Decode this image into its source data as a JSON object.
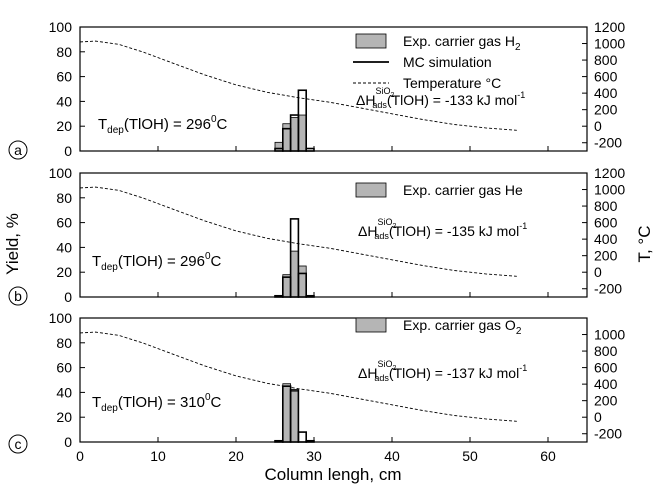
{
  "figure": {
    "y_left_label": "Yield, %",
    "y_right_label": "T, °C",
    "x_label": "Column lengh, cm"
  },
  "chart_data": [
    {
      "type": "bar",
      "panel_label": "a",
      "xlim": [
        0,
        65
      ],
      "ylim": [
        0,
        100
      ],
      "y2lim": [
        -300,
        1200
      ],
      "x_ticks": [
        0,
        10,
        20,
        30,
        40,
        50,
        60
      ],
      "y_ticks": [
        0,
        20,
        40,
        60,
        80,
        100
      ],
      "y2_ticks": [
        -200,
        0,
        200,
        400,
        600,
        800,
        1000,
        1200
      ],
      "bin_width": 1,
      "series": [
        {
          "name": "Exp. carrier gas H2",
          "kind": "bar-filled",
          "x": [
            25.5,
            26.5,
            27.5,
            28.5
          ],
          "values": [
            7,
            22,
            27,
            29
          ]
        },
        {
          "name": "MC simulation",
          "kind": "bar-outline",
          "x": [
            25.5,
            26.5,
            27.5,
            28.5,
            29.5
          ],
          "values": [
            2,
            18,
            29,
            49,
            2
          ]
        },
        {
          "name": "Temperature °C",
          "kind": "line-dashed",
          "axis": "right",
          "x": [
            0,
            2,
            5,
            8,
            12,
            16,
            20,
            24,
            28,
            32,
            36,
            40,
            44,
            48,
            52,
            56
          ],
          "values": [
            1020,
            1030,
            990,
            900,
            760,
            620,
            500,
            410,
            345,
            290,
            220,
            150,
            80,
            20,
            -20,
            -50
          ]
        }
      ],
      "legend": {
        "position": "top-right",
        "entries": [
          {
            "main": "Exp. carrier gas H",
            "sub": "2",
            "marker": "bar-filled"
          },
          {
            "main": "MC simulation",
            "sub": "",
            "marker": "line-solid"
          },
          {
            "main": "Temperature °C",
            "sub": "",
            "marker": "line-dashed"
          }
        ]
      },
      "annotations": {
        "tdep": {
          "t": "T",
          "sub": "dep",
          "mid": "(TlOH) = 296",
          "sup": "0",
          "end": "C"
        },
        "dh": {
          "d": "ΔH",
          "sup1": "SiO",
          "sup1sub": "2",
          "sub1": "ads",
          "mid": "(TlOH) = -133 kJ mol",
          "sup2": "-1"
        }
      }
    },
    {
      "type": "bar",
      "panel_label": "b",
      "xlim": [
        0,
        65
      ],
      "ylim": [
        0,
        100
      ],
      "y2lim": [
        -300,
        1200
      ],
      "x_ticks": [
        0,
        10,
        20,
        30,
        40,
        50,
        60
      ],
      "y_ticks": [
        0,
        20,
        40,
        60,
        80,
        100
      ],
      "y2_ticks": [
        -200,
        0,
        200,
        400,
        600,
        800,
        1000,
        1200
      ],
      "bin_width": 1,
      "series": [
        {
          "name": "Exp. carrier gas He",
          "kind": "bar-filled",
          "x": [
            26.5,
            27.5,
            28.5
          ],
          "values": [
            18,
            37,
            25
          ]
        },
        {
          "name": "MC simulation",
          "kind": "bar-outline",
          "x": [
            25.5,
            26.5,
            27.5,
            28.5,
            29.5
          ],
          "values": [
            1,
            16,
            63,
            19,
            1
          ]
        },
        {
          "name": "Temperature °C",
          "kind": "line-dashed",
          "axis": "right",
          "x": [
            0,
            2,
            5,
            8,
            12,
            16,
            20,
            24,
            28,
            32,
            36,
            40,
            44,
            48,
            52,
            56
          ],
          "values": [
            1020,
            1030,
            990,
            900,
            760,
            620,
            500,
            410,
            345,
            290,
            220,
            150,
            80,
            20,
            -20,
            -50
          ]
        }
      ],
      "legend": {
        "position": "top-right",
        "entries": [
          {
            "main": "Exp. carrier gas He",
            "sub": "",
            "marker": "bar-filled"
          }
        ]
      },
      "annotations": {
        "tdep": {
          "t": "T",
          "sub": "dep",
          "mid": "(TlOH) = 296",
          "sup": "0",
          "end": "C"
        },
        "dh": {
          "d": "ΔH",
          "sup1": "SiO",
          "sup1sub": "2",
          "sub1": "ads",
          "mid": "(TlOH) = -135 kJ mol",
          "sup2": "-1"
        }
      }
    },
    {
      "type": "bar",
      "panel_label": "c",
      "xlim": [
        0,
        65
      ],
      "ylim": [
        0,
        100
      ],
      "y2lim": [
        -300,
        1200
      ],
      "x_ticks": [
        0,
        10,
        20,
        30,
        40,
        50,
        60
      ],
      "y_ticks": [
        0,
        20,
        40,
        60,
        80,
        100
      ],
      "y2_ticks": [
        -200,
        0,
        200,
        400,
        600,
        800,
        1000
      ],
      "bin_width": 1,
      "series": [
        {
          "name": "Exp. carrier gas O2",
          "kind": "bar-filled",
          "x": [
            26.5,
            27.5
          ],
          "values": [
            47,
            41
          ]
        },
        {
          "name": "MC simulation",
          "kind": "bar-outline",
          "x": [
            25.5,
            26.5,
            27.5,
            28.5,
            29.5
          ],
          "values": [
            1,
            45,
            42,
            8,
            1
          ]
        },
        {
          "name": "Temperature °C",
          "kind": "line-dashed",
          "axis": "right",
          "x": [
            0,
            2,
            5,
            8,
            12,
            16,
            20,
            24,
            28,
            32,
            36,
            40,
            44,
            48,
            52,
            56
          ],
          "values": [
            1020,
            1030,
            990,
            900,
            760,
            620,
            500,
            410,
            345,
            290,
            220,
            150,
            80,
            20,
            -20,
            -50
          ]
        }
      ],
      "legend": {
        "position": "top-right",
        "entries": [
          {
            "main": "Exp. carrier gas O",
            "sub": "2",
            "marker": "bar-filled"
          }
        ]
      },
      "annotations": {
        "tdep": {
          "t": "T",
          "sub": "dep",
          "mid": "(TlOH) = 310",
          "sup": "0",
          "end": "C"
        },
        "dh": {
          "d": "ΔH",
          "sup1": "SiO",
          "sup1sub": "2",
          "sub1": "ads",
          "mid": "(TlOH) = -137 kJ mol",
          "sup2": "-1"
        }
      }
    }
  ]
}
